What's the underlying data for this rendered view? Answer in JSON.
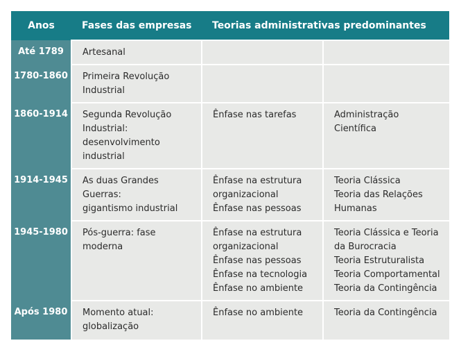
{
  "headers": [
    "Anos",
    "Fases das empresas",
    "Teorias administrativas predominantes"
  ],
  "rows": [
    {
      "years": "Até 1789",
      "phase": [
        "Artesanal"
      ],
      "emphasis": [],
      "theories": []
    },
    {
      "years": "1780-1860",
      "phase": [
        "Primeira Revolução",
        "Industrial"
      ],
      "emphasis": [],
      "theories": []
    },
    {
      "years": "1860-1914",
      "phase": [
        "Segunda Revolução",
        "Industrial:",
        "desenvolvimento",
        "industrial"
      ],
      "emphasis": [
        "Ênfase nas tarefas"
      ],
      "theories": [
        "Administração Científica"
      ]
    },
    {
      "years": "1914-1945",
      "phase": [
        "As duas Grandes Guerras:",
        "gigantismo industrial"
      ],
      "emphasis": [
        "Ênfase na estrutura",
        "organizacional",
        "Ênfase nas pessoas"
      ],
      "theories": [
        "Teoria Clássica",
        "Teoria das Relações",
        "Humanas"
      ]
    },
    {
      "years": "1945-1980",
      "phase": [
        "Pós-guerra: fase moderna"
      ],
      "emphasis": [
        "Ênfase na estrutura",
        "organizacional",
        "Ênfase nas pessoas",
        "Ênfase na tecnologia",
        "Ênfase no ambiente"
      ],
      "theories": [
        "Teoria Clássica e Teoria",
        "da Burocracia",
        "Teoria Estruturalista",
        "Teoria Comportamental",
        "Teoria da Contingência"
      ]
    },
    {
      "years": "Após 1980",
      "phase": [
        "Momento atual:",
        "globalização"
      ],
      "emphasis": [
        "Ênfase no ambiente"
      ],
      "theories": [
        "Teoria da Contingência"
      ]
    }
  ]
}
